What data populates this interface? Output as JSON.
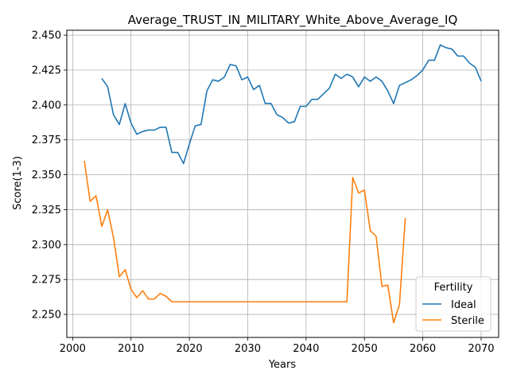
{
  "chart_data": {
    "type": "line",
    "title": "Average_TRUST_IN_MILITARY_White_Above_Average_IQ",
    "xlabel": "Years",
    "ylabel": "Score(1-3)",
    "xlim": [
      1999,
      2073
    ],
    "ylim": [
      2.2335,
      2.4535
    ],
    "xticks": [
      2000,
      2010,
      2020,
      2030,
      2040,
      2050,
      2060,
      2070
    ],
    "yticks": [
      2.25,
      2.275,
      2.3,
      2.325,
      2.35,
      2.375,
      2.4,
      2.425,
      2.45
    ],
    "xtick_labels": [
      "2000",
      "2010",
      "2020",
      "2030",
      "2040",
      "2050",
      "2060",
      "2070"
    ],
    "ytick_labels": [
      "2.250",
      "2.275",
      "2.300",
      "2.325",
      "2.350",
      "2.375",
      "2.400",
      "2.425",
      "2.450"
    ],
    "grid": true,
    "legend": {
      "title": "Fertility",
      "placement": "lower-right"
    },
    "series": [
      {
        "name": "Ideal",
        "color": "#1f77b4",
        "x": [
          2005,
          2006,
          2007,
          2008,
          2009,
          2010,
          2011,
          2012,
          2013,
          2014,
          2015,
          2016,
          2017,
          2018,
          2019,
          2020,
          2021,
          2022,
          2023,
          2024,
          2025,
          2026,
          2027,
          2028,
          2029,
          2030,
          2031,
          2032,
          2033,
          2034,
          2035,
          2036,
          2037,
          2038,
          2039,
          2040,
          2041,
          2042,
          2043,
          2044,
          2045,
          2046,
          2047,
          2048,
          2049,
          2050,
          2051,
          2052,
          2053,
          2054,
          2055,
          2056,
          2057,
          2058,
          2059,
          2060,
          2061,
          2062,
          2063,
          2064,
          2065,
          2066,
          2067,
          2068,
          2069,
          2070
        ],
        "y": [
          2.419,
          2.413,
          2.393,
          2.386,
          2.401,
          2.387,
          2.379,
          2.381,
          2.382,
          2.382,
          2.384,
          2.384,
          2.366,
          2.366,
          2.358,
          2.372,
          2.385,
          2.386,
          2.41,
          2.418,
          2.417,
          2.42,
          2.429,
          2.428,
          2.418,
          2.42,
          2.411,
          2.414,
          2.401,
          2.401,
          2.393,
          2.391,
          2.387,
          2.388,
          2.399,
          2.399,
          2.404,
          2.404,
          2.408,
          2.412,
          2.422,
          2.419,
          2.422,
          2.42,
          2.413,
          2.42,
          2.417,
          2.42,
          2.417,
          2.41,
          2.401,
          2.414,
          2.416,
          2.418,
          2.421,
          2.425,
          2.432,
          2.432,
          2.443,
          2.441,
          2.44,
          2.435,
          2.435,
          2.43,
          2.427,
          2.417
        ]
      },
      {
        "name": "Sterile",
        "color": "#ff7f0e",
        "x": [
          2002,
          2003,
          2004,
          2005,
          2006,
          2007,
          2008,
          2009,
          2010,
          2011,
          2012,
          2013,
          2014,
          2015,
          2016,
          2017,
          2018,
          2019,
          2020,
          2021,
          2022,
          2023,
          2024,
          2025,
          2026,
          2027,
          2028,
          2029,
          2030,
          2031,
          2032,
          2033,
          2034,
          2035,
          2036,
          2037,
          2038,
          2039,
          2040,
          2041,
          2042,
          2043,
          2044,
          2045,
          2046,
          2047,
          2048,
          2049,
          2050,
          2051,
          2052,
          2053,
          2054,
          2055,
          2056,
          2057
        ],
        "y": [
          2.36,
          2.331,
          2.335,
          2.313,
          2.325,
          2.305,
          2.277,
          2.282,
          2.268,
          2.262,
          2.267,
          2.261,
          2.261,
          2.265,
          2.263,
          2.259,
          2.259,
          2.259,
          2.259,
          2.259,
          2.259,
          2.259,
          2.259,
          2.259,
          2.259,
          2.259,
          2.259,
          2.259,
          2.259,
          2.259,
          2.259,
          2.259,
          2.259,
          2.259,
          2.259,
          2.259,
          2.259,
          2.259,
          2.259,
          2.259,
          2.259,
          2.259,
          2.259,
          2.259,
          2.259,
          2.259,
          2.348,
          2.337,
          2.339,
          2.31,
          2.306,
          2.27,
          2.271,
          2.244,
          2.257,
          2.319
        ]
      }
    ]
  }
}
